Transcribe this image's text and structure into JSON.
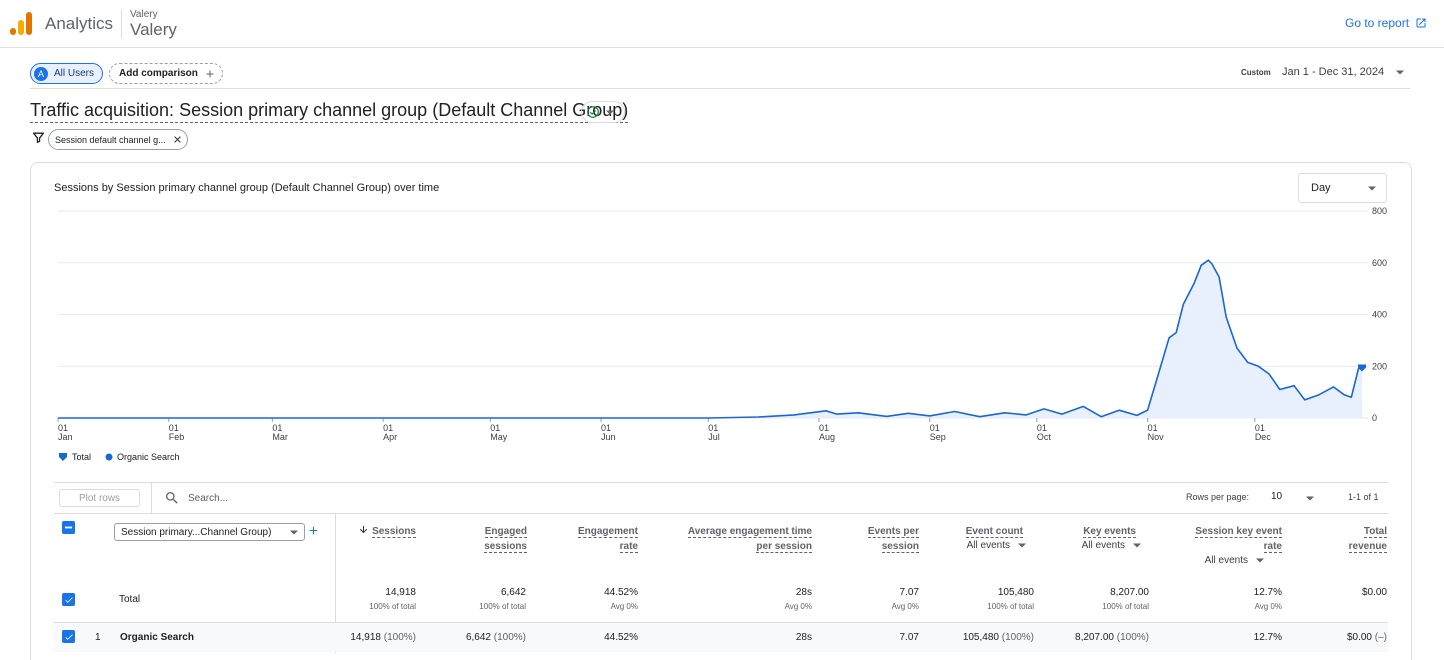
{
  "header": {
    "app_name": "Analytics",
    "account_label": "Valery",
    "property_name": "Valery",
    "go_to_report": "Go to report"
  },
  "comparisons": {
    "segment_avatar": "A",
    "segment_label": "All Users",
    "add_comparison": "Add comparison"
  },
  "date": {
    "custom_label": "Custom",
    "range": "Jan 1 - Dec 31, 2024"
  },
  "report": {
    "title": "Traffic acquisition: Session primary channel group (Default Channel Group)",
    "filter_chip": "Session default channel g..."
  },
  "chart": {
    "title": "Sessions by Session primary channel group (Default Channel Group) over time",
    "granularity": "Day",
    "legend_total": "Total",
    "legend_series": "Organic Search"
  },
  "chart_data": {
    "type": "area",
    "title": "Sessions by Session primary channel group (Default Channel Group) over time",
    "x_ticks": [
      {
        "day": "01",
        "month": "Jan"
      },
      {
        "day": "01",
        "month": "Feb"
      },
      {
        "day": "01",
        "month": "Mar"
      },
      {
        "day": "01",
        "month": "Apr"
      },
      {
        "day": "01",
        "month": "May"
      },
      {
        "day": "01",
        "month": "Jun"
      },
      {
        "day": "01",
        "month": "Jul"
      },
      {
        "day": "01",
        "month": "Aug"
      },
      {
        "day": "01",
        "month": "Sep"
      },
      {
        "day": "01",
        "month": "Oct"
      },
      {
        "day": "01",
        "month": "Nov"
      },
      {
        "day": "01",
        "month": "Dec"
      }
    ],
    "y_ticks": [
      "800",
      "600",
      "400",
      "200",
      "0"
    ],
    "ylim": [
      0,
      800
    ],
    "y_axis_position": "right",
    "grid": true,
    "legend_position": "bottom-left",
    "series": [
      {
        "name": "Organic Search",
        "color": "#1967d2",
        "points": [
          [
            "2024-01-01",
            0
          ],
          [
            "2024-07-01",
            0
          ],
          [
            "2024-07-15",
            4
          ],
          [
            "2024-07-25",
            12
          ],
          [
            "2024-08-03",
            28
          ],
          [
            "2024-08-06",
            15
          ],
          [
            "2024-08-12",
            20
          ],
          [
            "2024-08-20",
            6
          ],
          [
            "2024-08-26",
            18
          ],
          [
            "2024-09-01",
            8
          ],
          [
            "2024-09-08",
            25
          ],
          [
            "2024-09-15",
            5
          ],
          [
            "2024-09-22",
            20
          ],
          [
            "2024-09-28",
            12
          ],
          [
            "2024-10-03",
            35
          ],
          [
            "2024-10-08",
            15
          ],
          [
            "2024-10-14",
            45
          ],
          [
            "2024-10-19",
            5
          ],
          [
            "2024-10-24",
            30
          ],
          [
            "2024-10-29",
            10
          ],
          [
            "2024-11-01",
            30
          ],
          [
            "2024-11-04",
            170
          ],
          [
            "2024-11-07",
            310
          ],
          [
            "2024-11-09",
            330
          ],
          [
            "2024-11-11",
            440
          ],
          [
            "2024-11-14",
            520
          ],
          [
            "2024-11-16",
            590
          ],
          [
            "2024-11-18",
            610
          ],
          [
            "2024-11-19",
            595
          ],
          [
            "2024-11-21",
            545
          ],
          [
            "2024-11-23",
            390
          ],
          [
            "2024-11-26",
            270
          ],
          [
            "2024-11-29",
            215
          ],
          [
            "2024-12-02",
            200
          ],
          [
            "2024-12-05",
            170
          ],
          [
            "2024-12-08",
            110
          ],
          [
            "2024-12-12",
            125
          ],
          [
            "2024-12-15",
            70
          ],
          [
            "2024-12-19",
            90
          ],
          [
            "2024-12-23",
            120
          ],
          [
            "2024-12-26",
            90
          ],
          [
            "2024-12-28",
            80
          ],
          [
            "2024-12-30",
            190
          ],
          [
            "2024-12-31",
            195
          ]
        ]
      }
    ]
  },
  "table": {
    "plot_rows": "Plot rows",
    "search_placeholder": "Search...",
    "rows_per_page_label": "Rows per page:",
    "rows_per_page": "10",
    "pagination": "1-1 of 1",
    "dimension_select": "Session primary...Channel Group)",
    "columns": [
      {
        "line1": "Sessions",
        "line2": "",
        "sub": ""
      },
      {
        "line1": "Engaged",
        "line2": "sessions",
        "sub": ""
      },
      {
        "line1": "Engagement",
        "line2": "rate",
        "sub": ""
      },
      {
        "line1": "Average engagement time",
        "line2": "per session",
        "sub": ""
      },
      {
        "line1": "Events per",
        "line2": "session",
        "sub": ""
      },
      {
        "line1": "Event count",
        "line2": "",
        "sub": "All events"
      },
      {
        "line1": "Key events",
        "line2": "",
        "sub": "All events"
      },
      {
        "line1": "Session key event",
        "line2": "rate",
        "sub": "All events"
      },
      {
        "line1": "Total",
        "line2": "revenue",
        "sub": ""
      }
    ],
    "total_label": "Total",
    "totals": [
      {
        "value": "14,918",
        "sub": "100% of total"
      },
      {
        "value": "6,642",
        "sub": "100% of total"
      },
      {
        "value": "44.52%",
        "sub": "Avg 0%"
      },
      {
        "value": "28s",
        "sub": "Avg 0%"
      },
      {
        "value": "7.07",
        "sub": "Avg 0%"
      },
      {
        "value": "105,480",
        "sub": "100% of total"
      },
      {
        "value": "8,207.00",
        "sub": "100% of total"
      },
      {
        "value": "12.7%",
        "sub": "Avg 0%"
      },
      {
        "value": "$0.00",
        "sub": ""
      }
    ],
    "rows": [
      {
        "num": "1",
        "name": "Organic Search",
        "cells": [
          {
            "value": "14,918",
            "pct": "(100%)"
          },
          {
            "value": "6,642",
            "pct": "(100%)"
          },
          {
            "value": "44.52%",
            "pct": ""
          },
          {
            "value": "28s",
            "pct": ""
          },
          {
            "value": "7.07",
            "pct": ""
          },
          {
            "value": "105,480",
            "pct": "(100%)"
          },
          {
            "value": "8,207.00",
            "pct": "(100%)"
          },
          {
            "value": "12.7%",
            "pct": ""
          },
          {
            "value": "$0.00",
            "pct": "(–)"
          }
        ]
      }
    ]
  }
}
